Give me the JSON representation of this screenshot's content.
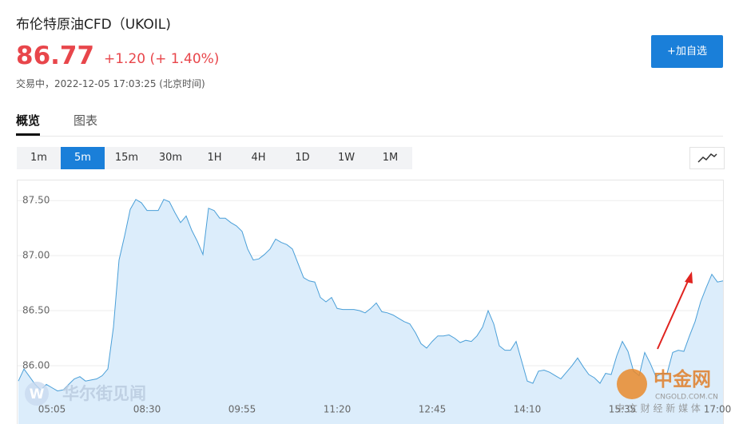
{
  "header": {
    "title": "布伦特原油CFD（UKOIL)",
    "price": "86.77",
    "change": "+1.20 (+ 1.40%)",
    "status": "交易中，2022-12-05 17:03:25 (北京时间)"
  },
  "button": "+加自选",
  "tabs": [
    "概览",
    "图表"
  ],
  "periods": [
    "1m",
    "5m",
    "15m",
    "30m",
    "1H",
    "4H",
    "1D",
    "1W",
    "1M"
  ],
  "watermarks": [
    "W",
    "华尔街见闻",
    "中金网",
    "CNGOLD.COM.CN",
    "中 文 财 经 新 媒 体"
  ],
  "chart_data": {
    "type": "area",
    "categories": [
      null,
      null,
      null,
      null,
      null,
      null,
      "05:05",
      null,
      null,
      null,
      null,
      null,
      null,
      null,
      null,
      null,
      null,
      null,
      null,
      null,
      null,
      null,
      null,
      "08:30",
      null,
      null,
      null,
      null,
      null,
      null,
      null,
      null,
      null,
      null,
      null,
      null,
      null,
      null,
      null,
      null,
      "09:55",
      null,
      null,
      null,
      null,
      null,
      null,
      null,
      null,
      null,
      null,
      null,
      null,
      null,
      null,
      null,
      null,
      "11:20",
      null,
      null,
      null,
      null,
      null,
      null,
      null,
      null,
      null,
      null,
      null,
      null,
      null,
      null,
      null,
      null,
      "12:45",
      null,
      null,
      null,
      null,
      null,
      null,
      null,
      null,
      null,
      null,
      null,
      null,
      null,
      null,
      null,
      null,
      "14:10",
      null,
      null,
      null,
      null,
      null,
      null,
      null,
      null,
      null,
      null,
      null,
      null,
      null,
      null,
      null,
      null,
      "15:35",
      null,
      null,
      null,
      null,
      null,
      null,
      null,
      null,
      null,
      null,
      null,
      null,
      null,
      null,
      null,
      null,
      "17:00",
      null
    ],
    "values": [
      85.86,
      85.97,
      85.9,
      85.83,
      85.78,
      85.83,
      85.8,
      85.77,
      85.78,
      85.83,
      85.88,
      85.9,
      85.86,
      85.87,
      85.88,
      85.91,
      85.97,
      86.35,
      86.96,
      87.18,
      87.42,
      87.51,
      87.48,
      87.41,
      87.41,
      87.41,
      87.51,
      87.49,
      87.39,
      87.3,
      87.36,
      87.23,
      87.13,
      87.01,
      87.43,
      87.41,
      87.34,
      87.34,
      87.3,
      87.27,
      87.22,
      87.06,
      86.96,
      86.97,
      87.01,
      87.06,
      87.15,
      87.12,
      87.1,
      87.06,
      86.93,
      86.8,
      86.77,
      86.76,
      86.62,
      86.58,
      86.62,
      86.52,
      86.51,
      86.51,
      86.51,
      86.5,
      86.48,
      86.52,
      86.57,
      86.49,
      86.48,
      86.46,
      86.43,
      86.4,
      86.38,
      86.3,
      86.2,
      86.16,
      86.22,
      86.27,
      86.27,
      86.28,
      86.25,
      86.21,
      86.23,
      86.22,
      86.27,
      86.35,
      86.5,
      86.38,
      86.18,
      86.14,
      86.14,
      86.22,
      86.04,
      85.86,
      85.84,
      85.95,
      85.96,
      85.94,
      85.91,
      85.88,
      85.94,
      86.0,
      86.07,
      85.99,
      85.92,
      85.89,
      85.84,
      85.93,
      85.92,
      86.09,
      86.22,
      86.13,
      85.95,
      85.91,
      86.12,
      86.02,
      85.9,
      85.93,
      85.93,
      86.12,
      86.14,
      86.13,
      86.27,
      86.4,
      86.58,
      86.71,
      86.83,
      86.76,
      86.77
    ],
    "color": "#4a9fd8",
    "fill": "#dcedfb",
    "ylim": [
      85.47,
      87.69
    ],
    "yticks": [
      {
        "value": 86,
        "label": "86.00"
      },
      {
        "value": 86.5,
        "label": "86.50"
      },
      {
        "value": 87,
        "label": "87.00"
      },
      {
        "value": 87.5,
        "label": "87.50"
      }
    ],
    "grid": true
  }
}
